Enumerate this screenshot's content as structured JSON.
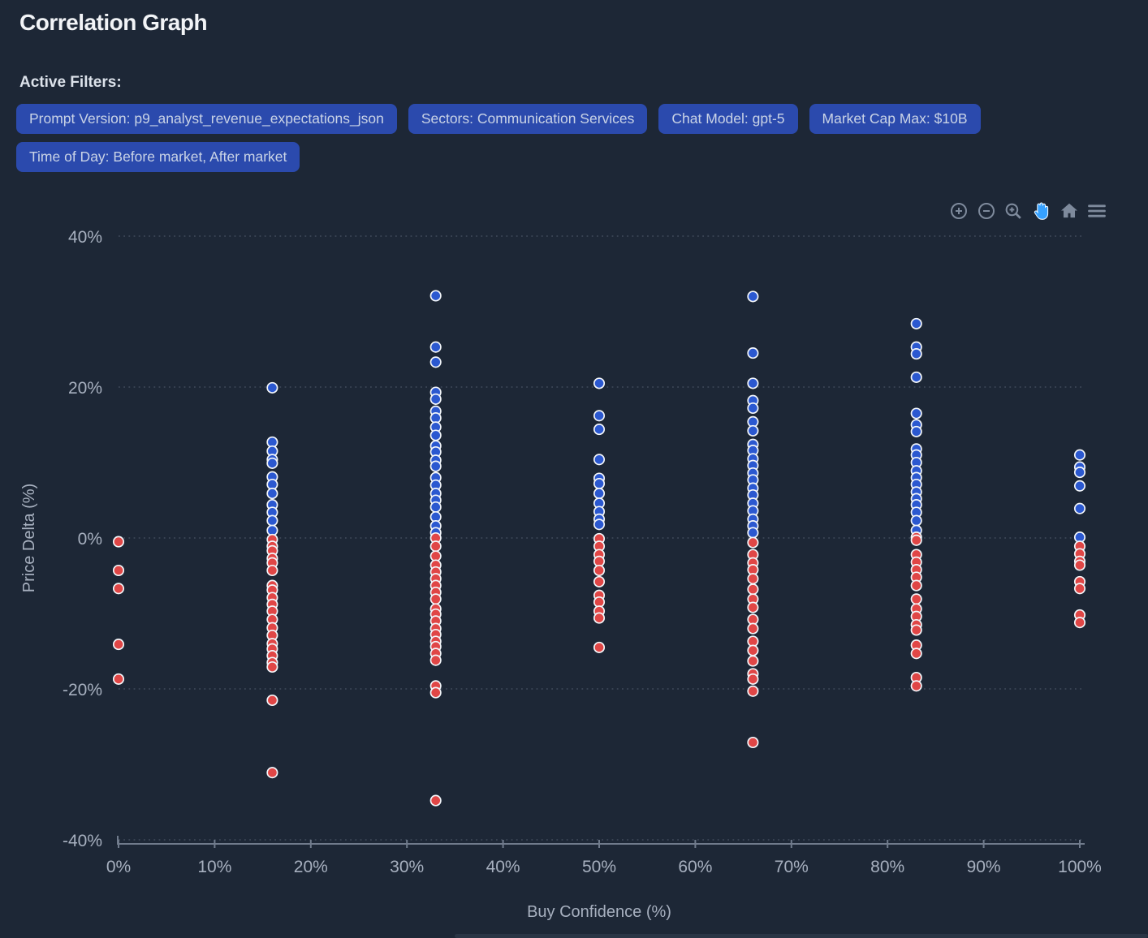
{
  "page": {
    "title": "Correlation Graph"
  },
  "filters": {
    "label": "Active Filters:",
    "chips": [
      "Prompt Version: p9_analyst_revenue_expectations_json",
      "Sectors: Communication Services",
      "Chat Model: gpt-5",
      "Market Cap Max: $10B",
      "Time of Day: Before market, After market"
    ]
  },
  "toolbar": {
    "icons": [
      "zoom-in",
      "zoom-out",
      "zoom",
      "pan",
      "home",
      "menu"
    ],
    "active_icon": "pan",
    "icon_color": "#7e8a9c",
    "active_color": "#36a1ff"
  },
  "chart_data": {
    "type": "scatter",
    "title": "",
    "xlabel": "Buy Confidence (%)",
    "ylabel": "Price Delta (%)",
    "xlim": [
      0,
      100
    ],
    "ylim": [
      -40,
      40
    ],
    "grid": "horizontal-dotted",
    "legend_position": "none",
    "x_ticks": [
      {
        "value": 0,
        "label": "0%"
      },
      {
        "value": 10,
        "label": "10%"
      },
      {
        "value": 20,
        "label": "20%"
      },
      {
        "value": 30,
        "label": "30%"
      },
      {
        "value": 40,
        "label": "40%"
      },
      {
        "value": 50,
        "label": "50%"
      },
      {
        "value": 60,
        "label": "60%"
      },
      {
        "value": 70,
        "label": "70%"
      },
      {
        "value": 80,
        "label": "80%"
      },
      {
        "value": 90,
        "label": "90%"
      },
      {
        "value": 100,
        "label": "100%"
      }
    ],
    "y_ticks": [
      {
        "value": 40,
        "label": "40%"
      },
      {
        "value": 20,
        "label": "20%"
      },
      {
        "value": 0,
        "label": "0%"
      },
      {
        "value": -20,
        "label": "-20%"
      },
      {
        "value": -40,
        "label": "-40%"
      }
    ],
    "series": [
      {
        "name": "positive-delta",
        "color": "#2b58d0",
        "points": [
          [
            16,
            19.9
          ],
          [
            16,
            12.7
          ],
          [
            16,
            11.5
          ],
          [
            16,
            10.4
          ],
          [
            16,
            9.9
          ],
          [
            16,
            8.1
          ],
          [
            16,
            7.1
          ],
          [
            16,
            5.9
          ],
          [
            16,
            4.4
          ],
          [
            16,
            3.4
          ],
          [
            16,
            2.3
          ],
          [
            16,
            1.0
          ],
          [
            33,
            32.1
          ],
          [
            33,
            25.3
          ],
          [
            33,
            23.3
          ],
          [
            33,
            19.3
          ],
          [
            33,
            18.4
          ],
          [
            33,
            16.8
          ],
          [
            33,
            15.9
          ],
          [
            33,
            14.7
          ],
          [
            33,
            13.6
          ],
          [
            33,
            12.2
          ],
          [
            33,
            11.4
          ],
          [
            33,
            10.3
          ],
          [
            33,
            9.5
          ],
          [
            33,
            8.0
          ],
          [
            33,
            7.0
          ],
          [
            33,
            5.9
          ],
          [
            33,
            5.0
          ],
          [
            33,
            4.1
          ],
          [
            33,
            2.8
          ],
          [
            33,
            1.6
          ],
          [
            33,
            0.7
          ],
          [
            50,
            20.5
          ],
          [
            50,
            16.2
          ],
          [
            50,
            14.4
          ],
          [
            50,
            10.4
          ],
          [
            50,
            7.9
          ],
          [
            50,
            7.2
          ],
          [
            50,
            5.9
          ],
          [
            50,
            4.6
          ],
          [
            50,
            3.5
          ],
          [
            50,
            2.5
          ],
          [
            50,
            1.8
          ],
          [
            66,
            32.0
          ],
          [
            66,
            24.5
          ],
          [
            66,
            20.5
          ],
          [
            66,
            18.2
          ],
          [
            66,
            17.2
          ],
          [
            66,
            15.4
          ],
          [
            66,
            14.2
          ],
          [
            66,
            12.4
          ],
          [
            66,
            11.6
          ],
          [
            66,
            10.5
          ],
          [
            66,
            9.6
          ],
          [
            66,
            8.6
          ],
          [
            66,
            7.7
          ],
          [
            66,
            6.6
          ],
          [
            66,
            5.7
          ],
          [
            66,
            4.6
          ],
          [
            66,
            3.6
          ],
          [
            66,
            2.5
          ],
          [
            66,
            1.6
          ],
          [
            66,
            0.7
          ],
          [
            83,
            28.4
          ],
          [
            83,
            25.3
          ],
          [
            83,
            24.4
          ],
          [
            83,
            21.3
          ],
          [
            83,
            16.5
          ],
          [
            83,
            15.0
          ],
          [
            83,
            14.1
          ],
          [
            83,
            11.8
          ],
          [
            83,
            11.0
          ],
          [
            83,
            10.0
          ],
          [
            83,
            8.9
          ],
          [
            83,
            8.0
          ],
          [
            83,
            7.1
          ],
          [
            83,
            6.1
          ],
          [
            83,
            5.2
          ],
          [
            83,
            4.4
          ],
          [
            83,
            3.4
          ],
          [
            83,
            2.3
          ],
          [
            83,
            1.0
          ],
          [
            100,
            11.0
          ],
          [
            100,
            9.4
          ],
          [
            100,
            8.7
          ],
          [
            100,
            6.9
          ],
          [
            100,
            3.9
          ],
          [
            100,
            0.1
          ]
        ]
      },
      {
        "name": "negative-delta",
        "color": "#e04646",
        "points": [
          [
            0,
            -0.5
          ],
          [
            0,
            -4.3
          ],
          [
            0,
            -6.7
          ],
          [
            0,
            -14.1
          ],
          [
            0,
            -18.7
          ],
          [
            16,
            -0.2
          ],
          [
            16,
            -1.1
          ],
          [
            16,
            -1.7
          ],
          [
            16,
            -2.7
          ],
          [
            16,
            -3.3
          ],
          [
            16,
            -4.3
          ],
          [
            16,
            -6.3
          ],
          [
            16,
            -6.9
          ],
          [
            16,
            -7.9
          ],
          [
            16,
            -8.8
          ],
          [
            16,
            -9.7
          ],
          [
            16,
            -10.8
          ],
          [
            16,
            -11.9
          ],
          [
            16,
            -12.9
          ],
          [
            16,
            -14.0
          ],
          [
            16,
            -14.7
          ],
          [
            16,
            -15.6
          ],
          [
            16,
            -16.5
          ],
          [
            16,
            -17.1
          ],
          [
            16,
            -21.5
          ],
          [
            16,
            -31.1
          ],
          [
            33,
            0.0
          ],
          [
            33,
            -1.1
          ],
          [
            33,
            -2.4
          ],
          [
            33,
            -3.6
          ],
          [
            33,
            -4.5
          ],
          [
            33,
            -5.4
          ],
          [
            33,
            -6.3
          ],
          [
            33,
            -7.2
          ],
          [
            33,
            -8.1
          ],
          [
            33,
            -9.4
          ],
          [
            33,
            -10.1
          ],
          [
            33,
            -11.0
          ],
          [
            33,
            -12.0
          ],
          [
            33,
            -12.8
          ],
          [
            33,
            -13.7
          ],
          [
            33,
            -14.4
          ],
          [
            33,
            -15.3
          ],
          [
            33,
            -16.2
          ],
          [
            33,
            -19.6
          ],
          [
            33,
            -20.5
          ],
          [
            33,
            -34.8
          ],
          [
            50,
            -0.1
          ],
          [
            50,
            -1.1
          ],
          [
            50,
            -2.2
          ],
          [
            50,
            -3.1
          ],
          [
            50,
            -4.3
          ],
          [
            50,
            -5.8
          ],
          [
            50,
            -7.6
          ],
          [
            50,
            -8.5
          ],
          [
            50,
            -9.7
          ],
          [
            50,
            -10.6
          ],
          [
            50,
            -14.5
          ],
          [
            66,
            -0.6
          ],
          [
            66,
            -2.2
          ],
          [
            66,
            -3.3
          ],
          [
            66,
            -4.2
          ],
          [
            66,
            -5.4
          ],
          [
            66,
            -6.8
          ],
          [
            66,
            -8.1
          ],
          [
            66,
            -9.2
          ],
          [
            66,
            -10.8
          ],
          [
            66,
            -12.0
          ],
          [
            66,
            -13.7
          ],
          [
            66,
            -14.9
          ],
          [
            66,
            -16.3
          ],
          [
            66,
            -18.0
          ],
          [
            66,
            -18.7
          ],
          [
            66,
            -20.3
          ],
          [
            66,
            -27.1
          ],
          [
            83,
            0.1
          ],
          [
            83,
            -0.3
          ],
          [
            83,
            -2.2
          ],
          [
            83,
            -3.2
          ],
          [
            83,
            -4.2
          ],
          [
            83,
            -5.2
          ],
          [
            83,
            -6.3
          ],
          [
            83,
            -8.1
          ],
          [
            83,
            -9.4
          ],
          [
            83,
            -10.4
          ],
          [
            83,
            -11.5
          ],
          [
            83,
            -12.2
          ],
          [
            83,
            -14.2
          ],
          [
            83,
            -15.3
          ],
          [
            83,
            -18.5
          ],
          [
            83,
            -19.6
          ],
          [
            100,
            -1.1
          ],
          [
            100,
            -2.1
          ],
          [
            100,
            -3.1
          ],
          [
            100,
            -3.6
          ],
          [
            100,
            -5.8
          ],
          [
            100,
            -6.7
          ],
          [
            100,
            -10.2
          ],
          [
            100,
            -11.2
          ]
        ]
      }
    ]
  }
}
